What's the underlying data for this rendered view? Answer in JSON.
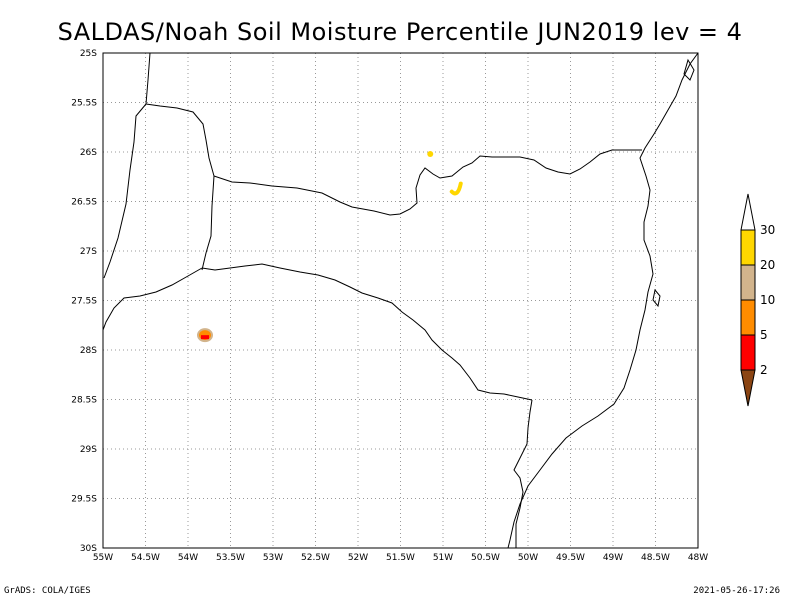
{
  "title": "SALDAS/Noah Soil Moisture Percentile JUN2019 lev = 4",
  "footer_left": "GrADS: COLA/IGES",
  "footer_right": "2021-05-26-17:26",
  "map": {
    "x_ticks": [
      "55W",
      "54.5W",
      "54W",
      "53.5W",
      "53W",
      "52.5W",
      "52W",
      "51.5W",
      "51W",
      "50.5W",
      "50W",
      "49.5W",
      "49W",
      "48.5W",
      "48W"
    ],
    "y_ticks": [
      "25S",
      "25.5S",
      "26S",
      "26.5S",
      "27S",
      "27.5S",
      "28S",
      "28.5S",
      "29S",
      "29.5S",
      "30S"
    ],
    "lon_range": [
      -55,
      -48
    ],
    "lat_range": [
      -30,
      -25
    ],
    "grid": true
  },
  "colorbar": {
    "labels": [
      "2",
      "5",
      "10",
      "20",
      "30"
    ],
    "colors": [
      "#8b4513",
      "#ff0000",
      "#ff8c00",
      "#d2b48c",
      "#ffd700"
    ]
  },
  "features": [
    {
      "name": "anomaly-1",
      "lon": -51.15,
      "lat": -26.02,
      "color": "#ffd700"
    },
    {
      "name": "anomaly-2",
      "lon": -50.85,
      "lat": -26.38,
      "color": "#ffd700"
    },
    {
      "name": "anomaly-3",
      "lon": -53.8,
      "lat": -27.85,
      "color": "#d2b48c"
    }
  ]
}
